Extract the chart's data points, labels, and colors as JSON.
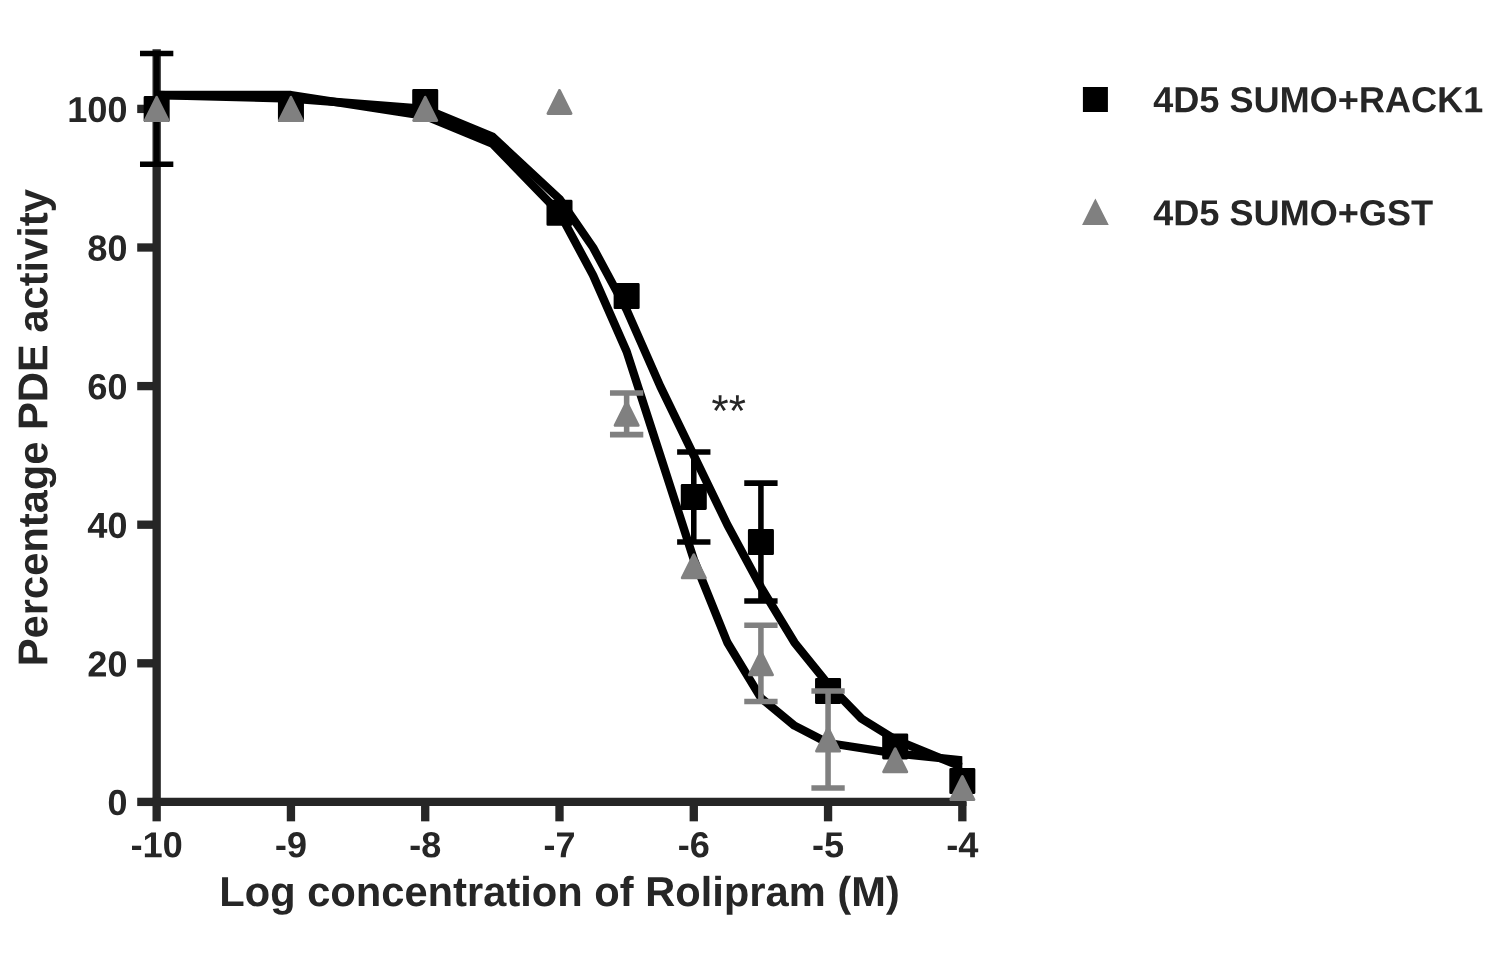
{
  "chart_data": {
    "type": "scatter",
    "xlabel": "Log concentration of Rolipram (M)",
    "ylabel": "Percentage PDE activity",
    "x": [
      -10,
      -9,
      -8,
      -7,
      -6.5,
      -6,
      -5.5,
      -5,
      -4.5,
      -4
    ],
    "series": [
      {
        "name": "4D5 SUMO+RACK1",
        "color": "#000000",
        "marker": "square",
        "values": [
          100,
          100,
          101,
          85,
          73,
          44,
          37.5,
          16,
          8,
          3
        ],
        "errors": [
          8,
          null,
          null,
          null,
          null,
          6.5,
          8.5,
          null,
          null,
          null
        ]
      },
      {
        "name": "4D5 SUMO+GST",
        "color": "#808080",
        "marker": "triangle",
        "values": [
          100,
          100,
          100,
          101,
          56,
          34,
          20,
          9,
          6,
          2
        ],
        "errors": [
          null,
          null,
          null,
          null,
          3,
          null,
          5.5,
          [
            2,
            16
          ],
          null,
          null
        ]
      },
      {
        "type": "line",
        "color": "#000000",
        "x": [
          -10,
          -9,
          -8,
          -7.5,
          -7,
          -6.75,
          -6.5,
          -6.25,
          -6,
          -5.75,
          -5.5,
          -5.25,
          -5,
          -4.75,
          -4.5,
          -4.25,
          -4
        ],
        "values": [
          102,
          101.5,
          100,
          96,
          87,
          80,
          71,
          60,
          50,
          40,
          31,
          23,
          17,
          12,
          9,
          7,
          5
        ]
      },
      {
        "type": "line",
        "color": "#000000",
        "x": [
          -10,
          -9,
          -8,
          -7.5,
          -7,
          -6.75,
          -6.5,
          -6.25,
          -6,
          -5.75,
          -5.5,
          -5.25,
          -5,
          -4.5,
          -4
        ],
        "values": [
          102,
          102,
          99,
          95,
          85,
          76,
          65,
          50,
          35,
          23,
          15,
          11,
          8.5,
          7,
          6
        ]
      }
    ],
    "xlim": [
      -10,
      -4
    ],
    "xticks": [
      -10,
      -9,
      -8,
      -7,
      -6,
      -5,
      -4
    ],
    "ylim": [
      0,
      108
    ],
    "yticks": [
      0,
      20,
      40,
      60,
      80,
      100
    ],
    "annotations": [
      "**"
    ],
    "legend": "top right",
    "grid": false
  }
}
